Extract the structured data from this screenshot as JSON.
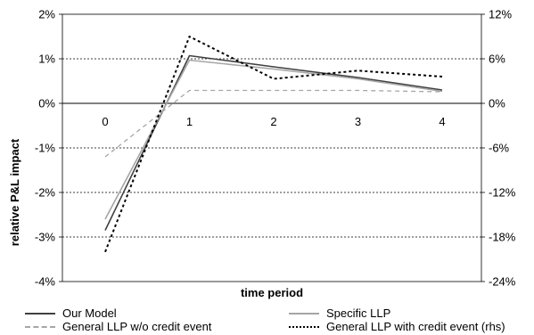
{
  "chart_data": {
    "type": "line",
    "title": "",
    "xlabel": "time period",
    "ylabel": "relative P&L impact",
    "categories": [
      "0",
      "1",
      "2",
      "3",
      "4"
    ],
    "ylim": [
      -4,
      2
    ],
    "yticks": [
      "2%",
      "1%",
      "0%",
      "-1%",
      "-2%",
      "-3%",
      "-4%"
    ],
    "y2lim": [
      -24,
      12
    ],
    "y2ticks": [
      "12%",
      "6%",
      "0%",
      "-6%",
      "-12%",
      "-18%",
      "-24%"
    ],
    "grid": true,
    "legend_position": "bottom",
    "series": [
      {
        "name": "Our Model",
        "axis": "left",
        "color": "#404040",
        "dash": "solid",
        "values": [
          -2.85,
          1.07,
          0.82,
          0.58,
          0.3
        ]
      },
      {
        "name": "Specific LLP",
        "axis": "left",
        "color": "#a6a6a6",
        "dash": "solid",
        "values": [
          -2.6,
          0.97,
          0.77,
          0.55,
          0.27
        ]
      },
      {
        "name": "General LLP w/o credit event",
        "axis": "left",
        "color": "#a6a6a6",
        "dash": "dashed",
        "values": [
          -1.2,
          0.29,
          0.29,
          0.29,
          0.26
        ]
      },
      {
        "name": "General LLP with credit event (rhs)",
        "axis": "right",
        "color": "#000000",
        "dash": "dotted",
        "values": [
          -20,
          9,
          3.3,
          4.4,
          3.6
        ]
      }
    ]
  }
}
